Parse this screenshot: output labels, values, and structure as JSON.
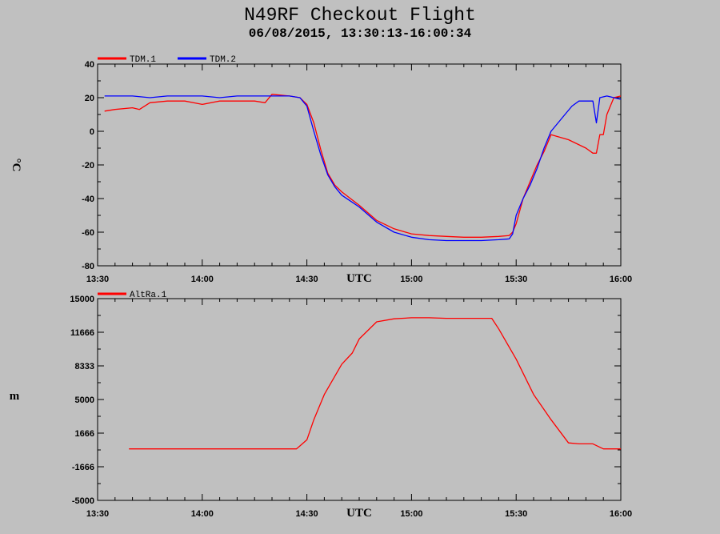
{
  "header": {
    "title": "N49RF Checkout Flight",
    "subtitle": "06/08/2015, 13:30:13-16:00:34"
  },
  "colors": {
    "background": "#c0c0c0",
    "tdm1": "#ff0000",
    "tdm2": "#0000ff",
    "altra1": "#ff0000"
  },
  "chart_data": [
    {
      "type": "line",
      "ylabel": "°C",
      "xlabel": "UTC",
      "xlim": [
        "13:30",
        "16:00"
      ],
      "ylim": [
        -80,
        40
      ],
      "x_tick_labels": [
        "13:30",
        "14:00",
        "14:30",
        "15:00",
        "15:30",
        "16:00"
      ],
      "y_tick_labels": [
        "-80",
        "-60",
        "-40",
        "-20",
        "0",
        "20",
        "40"
      ],
      "legend_position": "top-left",
      "series": [
        {
          "name": "TDM.1",
          "color": "#ff0000",
          "x": [
            "13:32",
            "13:35",
            "13:40",
            "13:42",
            "13:45",
            "13:50",
            "13:55",
            "14:00",
            "14:05",
            "14:10",
            "14:15",
            "14:18",
            "14:20",
            "14:25",
            "14:28",
            "14:30",
            "14:32",
            "14:34",
            "14:36",
            "14:38",
            "14:40",
            "14:45",
            "14:50",
            "14:55",
            "15:00",
            "15:05",
            "15:10",
            "15:15",
            "15:20",
            "15:25",
            "15:28",
            "15:29",
            "15:30",
            "15:32",
            "15:34",
            "15:36",
            "15:38",
            "15:40",
            "15:45",
            "15:50",
            "15:52",
            "15:53",
            "15:54",
            "15:55",
            "15:56",
            "15:58",
            "16:00"
          ],
          "values": [
            12,
            13,
            14,
            13,
            17,
            18,
            18,
            16,
            18,
            18,
            18,
            17,
            22,
            21,
            20,
            16,
            5,
            -11,
            -25,
            -32,
            -36,
            -44,
            -53,
            -58,
            -61,
            -62,
            -62.5,
            -63,
            -63,
            -62.5,
            -62,
            -60,
            -55,
            -40,
            -30,
            -20,
            -12,
            -2,
            -5,
            -10,
            -13,
            -13,
            -2,
            -2,
            10,
            20,
            21
          ]
        },
        {
          "name": "TDM.2",
          "color": "#0000ff",
          "x": [
            "13:32",
            "13:40",
            "13:45",
            "13:50",
            "14:00",
            "14:05",
            "14:10",
            "14:15",
            "14:20",
            "14:25",
            "14:28",
            "14:30",
            "14:32",
            "14:34",
            "14:36",
            "14:38",
            "14:40",
            "14:45",
            "14:50",
            "14:55",
            "15:00",
            "15:05",
            "15:10",
            "15:15",
            "15:20",
            "15:25",
            "15:28",
            "15:29",
            "15:30",
            "15:32",
            "15:34",
            "15:36",
            "15:38",
            "15:40",
            "15:42",
            "15:44",
            "15:46",
            "15:48",
            "15:50",
            "15:52",
            "15:53",
            "15:54",
            "15:56",
            "15:58",
            "16:00"
          ],
          "values": [
            21,
            21,
            20,
            21,
            21,
            20,
            21,
            21,
            21,
            21,
            20,
            15,
            0,
            -14,
            -26,
            -33,
            -38,
            -45,
            -54,
            -60,
            -63,
            -64.5,
            -65,
            -65,
            -65,
            -64.5,
            -64,
            -61,
            -50,
            -40,
            -32,
            -22,
            -10,
            0,
            5,
            10,
            15,
            18,
            18,
            18,
            5,
            20,
            21,
            20,
            19
          ]
        }
      ]
    },
    {
      "type": "line",
      "ylabel": "m",
      "xlabel": "UTC",
      "xlim": [
        "13:30",
        "16:00"
      ],
      "ylim": [
        -5000,
        15000
      ],
      "x_tick_labels": [
        "13:30",
        "14:00",
        "14:30",
        "15:00",
        "15:30",
        "16:00"
      ],
      "y_tick_labels": [
        "-5000",
        "-1666",
        "1666",
        "5000",
        "8333",
        "11666",
        "15000"
      ],
      "legend_position": "top-left",
      "series": [
        {
          "name": "AltRa.1",
          "color": "#ff0000",
          "x": [
            "13:39",
            "14:00",
            "14:20",
            "14:27",
            "14:28",
            "14:30",
            "14:32",
            "14:35",
            "14:40",
            "14:43",
            "14:45",
            "14:50",
            "14:55",
            "15:00",
            "15:05",
            "15:10",
            "15:15",
            "15:20",
            "15:23",
            "15:25",
            "15:30",
            "15:35",
            "15:40",
            "15:45",
            "15:48",
            "15:52",
            "15:55",
            "16:00"
          ],
          "values": [
            100,
            100,
            100,
            100,
            400,
            1000,
            3000,
            5500,
            8500,
            9600,
            11000,
            12700,
            13000,
            13100,
            13100,
            13050,
            13050,
            13050,
            13050,
            12000,
            9000,
            5500,
            3000,
            700,
            600,
            600,
            100,
            100
          ]
        }
      ]
    }
  ]
}
